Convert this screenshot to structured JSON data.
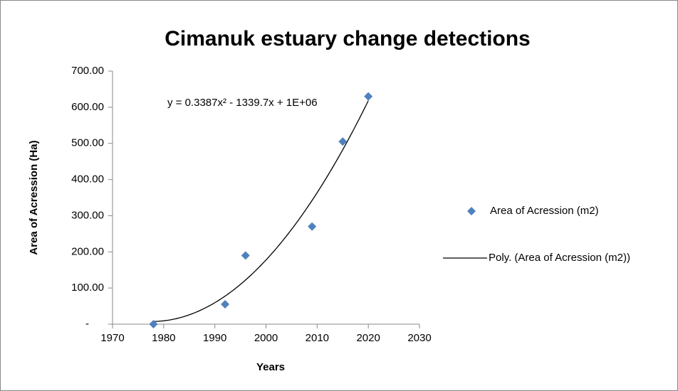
{
  "chart_data": {
    "type": "scatter",
    "title": "Cimanuk estuary change detections",
    "x_label": "Years",
    "y_label": "Area of Acression (Ha)",
    "annotation": "y = 0.3387x² - 1339.7x + 1E+06",
    "series": [
      {
        "name": "Area of Acression (m2)",
        "color": "#4f81bd",
        "x": [
          1978,
          1992,
          1996,
          2009,
          2015,
          2020
        ],
        "values": [
          0,
          55,
          190,
          270,
          505,
          630
        ]
      }
    ],
    "trendline": {
      "name": "Poly. (Area of Acression (m2))",
      "color": "#000000",
      "degree": 2
    },
    "xlim": [
      1970,
      2030
    ],
    "xticks": [
      1970,
      1980,
      1990,
      2000,
      2010,
      2020,
      2030
    ],
    "ylim": [
      0,
      700
    ],
    "yticks": [
      {
        "value": 0,
        "label": "-"
      },
      {
        "value": 100,
        "label": "100.00"
      },
      {
        "value": 200,
        "label": "200.00"
      },
      {
        "value": 300,
        "label": "300.00"
      },
      {
        "value": 400,
        "label": "400.00"
      },
      {
        "value": 500,
        "label": "500.00"
      },
      {
        "value": 600,
        "label": "600.00"
      },
      {
        "value": 700,
        "label": "700.00"
      }
    ],
    "grid": false,
    "legend": "right"
  }
}
